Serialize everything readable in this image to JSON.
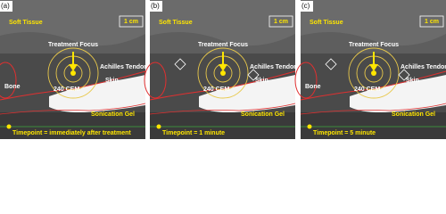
{
  "panels": [
    {
      "label": "(a)",
      "soft_tissue": "Soft Tissue",
      "scale": "1 cm",
      "focus": "Treatment Focus",
      "tendon": "Achilles Tendon",
      "skin": "Skin",
      "dose": "240 CEM",
      "bone": "Bone",
      "gel": "Sonication Gel",
      "timepoint": "Timepoint = immediately after treatment"
    },
    {
      "label": "(b)",
      "soft_tissue": "Soft Tissue",
      "scale": "1 cm",
      "focus": "Treatment Focus",
      "tendon": "Achilles Tendon",
      "skin": "Skin",
      "dose": "240 CEM",
      "gel": "Sonication Gel",
      "timepoint": "Timepoint = 1 minute"
    },
    {
      "label": "(c)",
      "soft_tissue": "Soft Tissue",
      "scale": "1 cm",
      "focus": "Treatment Focus",
      "tendon": "Achilles Tendon",
      "skin": "Skin",
      "dose": "240 CEM",
      "bone": "Bone",
      "gel": "Sonication Gel",
      "timepoint": "Timepoint = 5 minute"
    }
  ]
}
